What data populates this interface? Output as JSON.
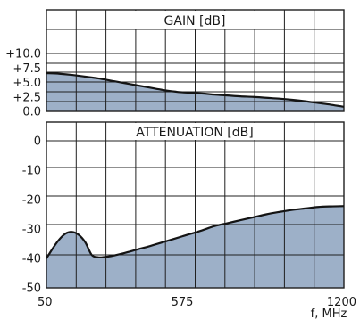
{
  "colors": {
    "fill": "#9db0c8",
    "curve": "#141414",
    "grid": "#202020",
    "background": "#ffffff"
  },
  "chart_data": [
    {
      "type": "area",
      "title": "GAIN [dB]",
      "x": [
        50,
        100,
        150,
        200,
        250,
        300,
        350,
        400,
        450,
        500,
        550,
        575,
        650,
        700,
        750,
        800,
        850,
        900,
        950,
        1000,
        1050,
        1100,
        1150,
        1200
      ],
      "y": [
        6.6,
        6.5,
        6.3,
        6.0,
        5.7,
        5.3,
        4.9,
        4.5,
        4.1,
        3.7,
        3.4,
        3.3,
        3.1,
        2.9,
        2.75,
        2.6,
        2.5,
        2.35,
        2.2,
        2.0,
        1.75,
        1.45,
        1.15,
        0.8
      ],
      "ylim": [
        0,
        12.5
      ],
      "yticks": [
        0,
        2.5,
        5.0,
        7.5,
        10.0
      ],
      "ytick_labels": [
        "0.0",
        "+2.5",
        "+5.0",
        "+7.5",
        "+10.0"
      ],
      "xlim": [
        50,
        1200
      ],
      "grid": true
    },
    {
      "type": "area",
      "title": "ATTENUATION [dB]",
      "x": [
        50,
        75,
        100,
        125,
        150,
        175,
        200,
        225,
        250,
        275,
        300,
        350,
        400,
        450,
        500,
        575,
        650,
        700,
        750,
        800,
        850,
        900,
        950,
        1000,
        1050,
        1100,
        1150,
        1200
      ],
      "y": [
        -40,
        -36.5,
        -33.5,
        -31.5,
        -31,
        -32,
        -34.5,
        -38.8,
        -39.6,
        -39.5,
        -39.2,
        -38.2,
        -37,
        -35.8,
        -34.5,
        -32.5,
        -30.5,
        -29,
        -28,
        -27,
        -26,
        -25,
        -24.2,
        -23.5,
        -23,
        -22.5,
        -22.3,
        -22.2
      ],
      "ylim": [
        -50,
        0
      ],
      "yticks": [
        0,
        -10,
        -20,
        -30,
        -40,
        -50
      ],
      "ytick_labels": [
        "0",
        "-10",
        "-20",
        "-30",
        "-40",
        "-50"
      ],
      "xlim": [
        50,
        1200
      ],
      "xticks": [
        50,
        575,
        1200
      ],
      "xtick_labels": [
        "50",
        "575",
        "1200"
      ],
      "xlabel": "f, MHz",
      "grid": true
    }
  ]
}
